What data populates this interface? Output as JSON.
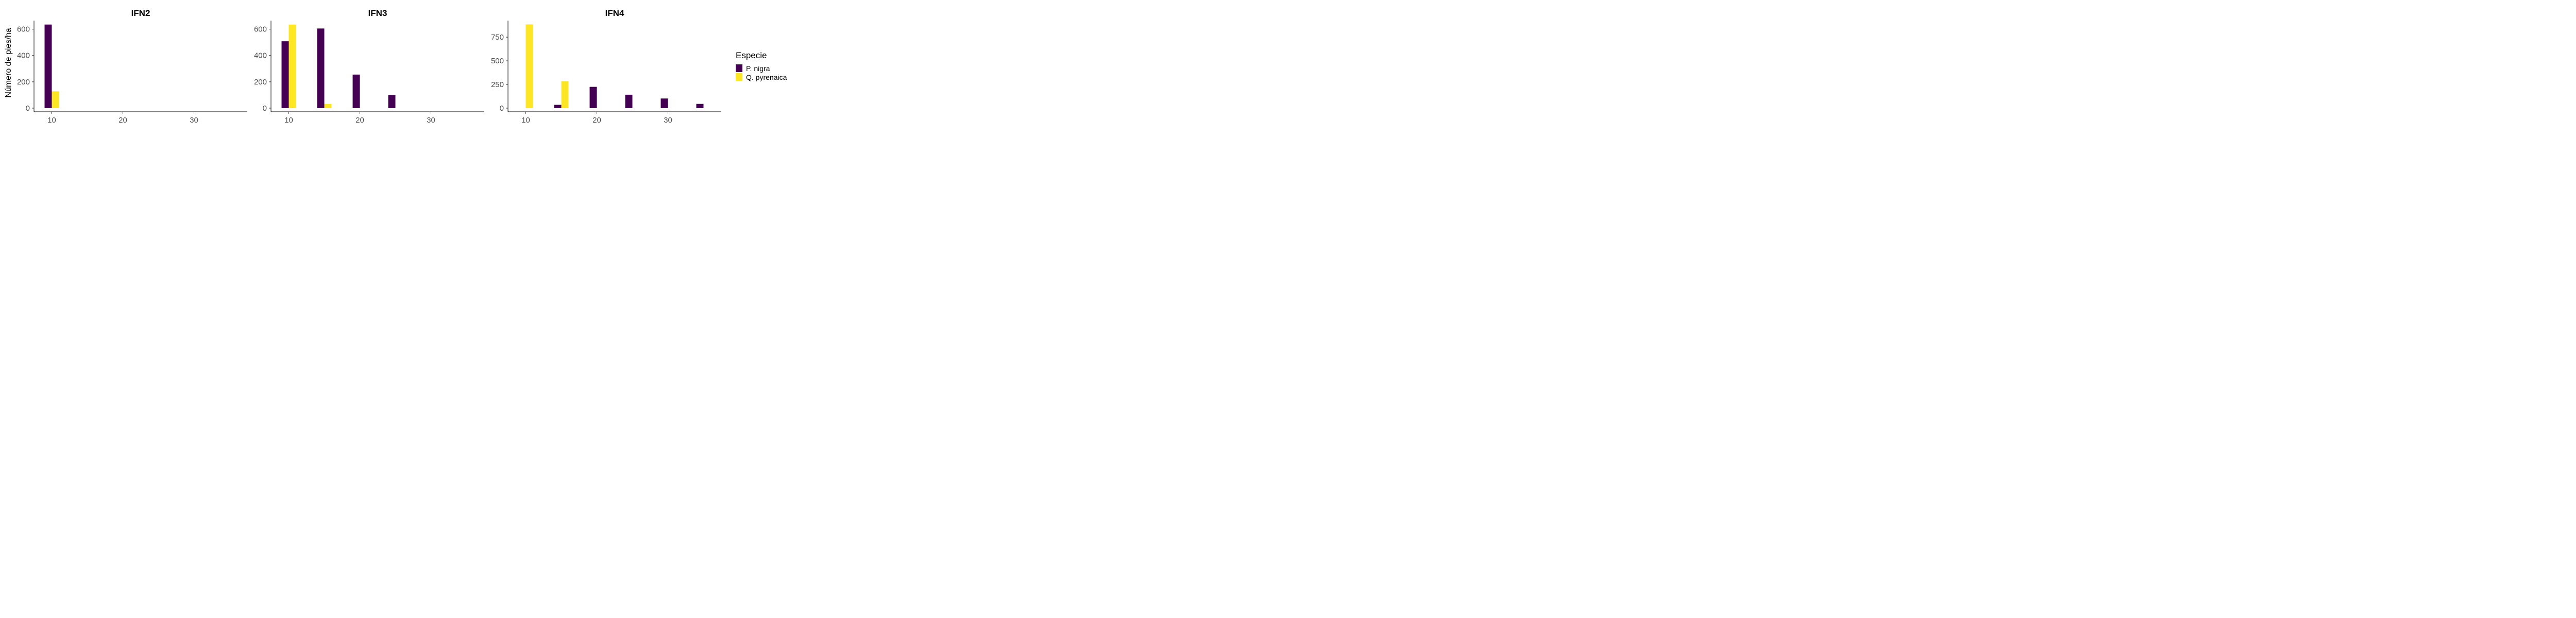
{
  "ylabel": "Número de pies/ha",
  "legend": {
    "title": "Especie",
    "items": [
      {
        "name": "P. nigra",
        "color": "#440154"
      },
      {
        "name": "Q. pyrenaica",
        "color": "#FDE725"
      }
    ]
  },
  "chart_data": [
    {
      "type": "bar",
      "title": "IFN2",
      "xlabel": "",
      "ylabel": "Número de pies/ha",
      "x_ticks": [
        10,
        20,
        30
      ],
      "y_ticks": [
        0,
        200,
        400,
        600
      ],
      "xlim": [
        7.5,
        37.5
      ],
      "ylim": [
        0,
        665
      ],
      "series": [
        {
          "name": "P. nigra",
          "x": [
            10
          ],
          "values": [
            635
          ]
        },
        {
          "name": "Q. pyrenaica",
          "x": [
            10
          ],
          "values": [
            128
          ]
        }
      ]
    },
    {
      "type": "bar",
      "title": "IFN3",
      "xlabel": "",
      "ylabel": "",
      "x_ticks": [
        10,
        20,
        30
      ],
      "y_ticks": [
        0,
        200,
        400,
        600
      ],
      "xlim": [
        7.5,
        37.5
      ],
      "ylim": [
        0,
        665
      ],
      "series": [
        {
          "name": "P. nigra",
          "x": [
            10,
            15,
            20,
            25
          ],
          "values": [
            508,
            605,
            255,
            100
          ]
        },
        {
          "name": "Q. pyrenaica",
          "x": [
            10,
            15
          ],
          "values": [
            635,
            32
          ]
        }
      ]
    },
    {
      "type": "bar",
      "title": "IFN4",
      "xlabel": "",
      "ylabel": "",
      "x_ticks": [
        10,
        20,
        30
      ],
      "y_ticks": [
        0,
        250,
        500,
        750
      ],
      "xlim": [
        7.5,
        37.5
      ],
      "ylim": [
        0,
        925
      ],
      "series": [
        {
          "name": "P. nigra",
          "x": [
            15,
            20,
            25,
            30,
            35
          ],
          "values": [
            35,
            225,
            142,
            102,
            45
          ]
        },
        {
          "name": "Q. pyrenaica",
          "x": [
            10,
            15
          ],
          "values": [
            885,
            285
          ]
        }
      ]
    }
  ]
}
